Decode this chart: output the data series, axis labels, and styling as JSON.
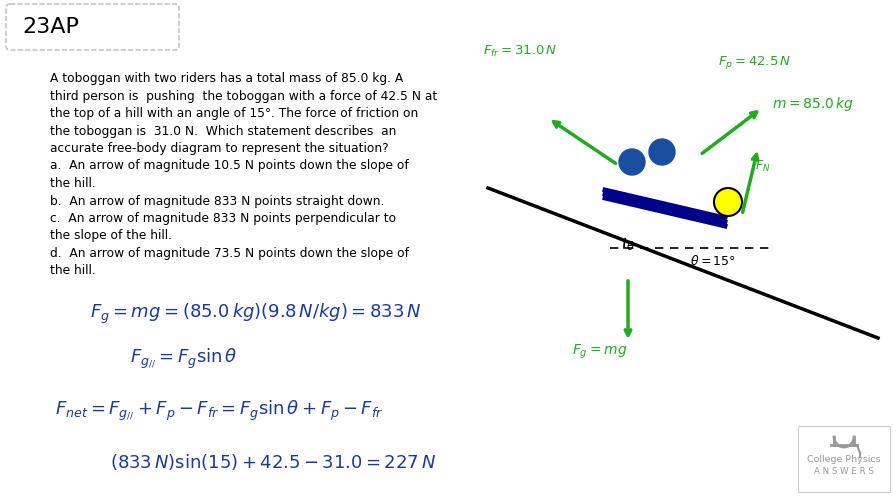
{
  "bg_color": "#f5f5f5",
  "title_box_text": "23AP",
  "problem_text": [
    "A toboggan with two riders has a total mass of 85.0 kg. A",
    "third person is  pushing  the toboggan with a force of 42.5 N at",
    "the top of a hill with an angle of 15°. The force of friction on",
    "the toboggan is  31.0 N.  Which statement describes  an",
    "accurate free-body diagram to represent the situation?",
    "a.  An arrow of magnitude 10.5 N points down the slope of",
    "the hill.",
    "b.  An arrow of magnitude 833 N points straight down.",
    "c.  An arrow of magnitude 833 N points perpendicular to",
    "the slope of the hill.",
    "d.  An arrow of magnitude 73.5 N points down the slope of",
    "the hill."
  ],
  "green": "#22aa22",
  "blue": "#1a4fa0",
  "yellow": "#ffff00",
  "math_color": "#1a3a9a",
  "logo_gray": "#999999",
  "background_white": "#ffffff",
  "border_color": "#cccccc"
}
